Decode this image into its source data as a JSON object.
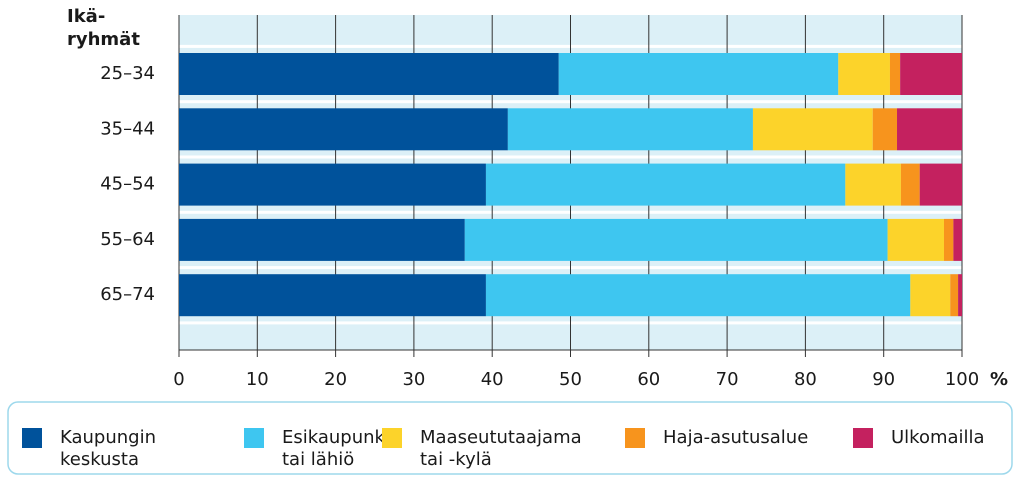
{
  "chart_data": {
    "type": "stacked-barh",
    "y_label": "Ikä-\nryhmät",
    "x_label": "%",
    "categories": [
      "25–34",
      "35–44",
      "45–54",
      "55–64",
      "65–74"
    ],
    "series": [
      {
        "name": "Kaupungin\nkeskusta",
        "color": "#00529b",
        "values": [
          48.5,
          42.0,
          39.2,
          36.5,
          39.2
        ]
      },
      {
        "name": "Esikaupunki\ntai lähiö",
        "color": "#3ec6f0",
        "values": [
          35.7,
          31.3,
          45.9,
          54.0,
          54.2
        ]
      },
      {
        "name": "Maaseututaajama\ntai -kylä",
        "color": "#fcd32a",
        "values": [
          6.6,
          15.3,
          7.1,
          7.2,
          5.1
        ]
      },
      {
        "name": "Haja-asutusalue",
        "color": "#f7941d",
        "values": [
          1.3,
          3.1,
          2.4,
          1.2,
          1.0
        ]
      },
      {
        "name": "Ulkomailla",
        "color": "#c4215f",
        "values": [
          7.9,
          8.3,
          5.4,
          1.1,
          0.5
        ]
      }
    ],
    "xlim": [
      0,
      100
    ],
    "xticks": [
      0,
      10,
      20,
      30,
      40,
      50,
      60,
      70,
      80,
      90,
      100
    ],
    "grid": true,
    "legend": "bottom"
  }
}
